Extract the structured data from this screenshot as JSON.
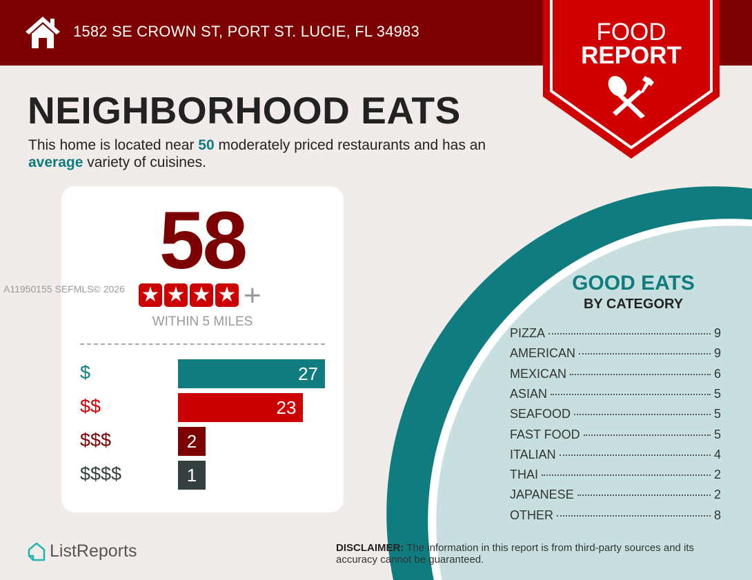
{
  "header": {
    "address": "1582 SE CROWN ST, PORT ST. LUCIE, FL 34983",
    "icon": "home-icon"
  },
  "badge": {
    "line1": "FOOD",
    "line2": "REPORT",
    "icon": "utensils-icon"
  },
  "title": "NEIGHBORHOOD EATS",
  "intro": {
    "prefix": "This home is located near ",
    "count": "50",
    "middle": " moderately priced restaurants and has an ",
    "variety": "average",
    "suffix": " variety of cuisines."
  },
  "summary": {
    "total": "58",
    "stars": 4,
    "plus": "+",
    "radius": "WITHIN 5 MILES"
  },
  "price_tiers": [
    {
      "label": "$",
      "count": 27,
      "color": "#0f7c80"
    },
    {
      "label": "$$",
      "count": 23,
      "color": "#cc0000"
    },
    {
      "label": "$$$",
      "count": 2,
      "color": "#7d0000"
    },
    {
      "label": "$$$$",
      "count": 1,
      "color": "#33403f"
    }
  ],
  "watermark": "A11950155  SEFMLS© 2026",
  "good_eats": {
    "title": "GOOD EATS",
    "subtitle": "BY CATEGORY",
    "categories": [
      {
        "name": "PIZZA",
        "count": "9"
      },
      {
        "name": "AMERICAN",
        "count": "9"
      },
      {
        "name": "MEXICAN",
        "count": "6"
      },
      {
        "name": "ASIAN",
        "count": "5"
      },
      {
        "name": "SEAFOOD",
        "count": "5"
      },
      {
        "name": "FAST FOOD",
        "count": "5"
      },
      {
        "name": "ITALIAN",
        "count": "4"
      },
      {
        "name": "THAI",
        "count": "2"
      },
      {
        "name": "JAPANESE",
        "count": "2"
      },
      {
        "name": "OTHER",
        "count": "8"
      }
    ]
  },
  "footer": {
    "logo": "ListReports",
    "disclaimer_label": "DISCLAIMER:",
    "disclaimer_text": " The information in this report is from third-party sources and its accuracy cannot be guaranteed."
  },
  "colors": {
    "header": "#7d0000",
    "badge": "#d10000",
    "teal": "#0f7c80",
    "circle_fill": "#c7e0df",
    "background": "#f1ece9"
  }
}
